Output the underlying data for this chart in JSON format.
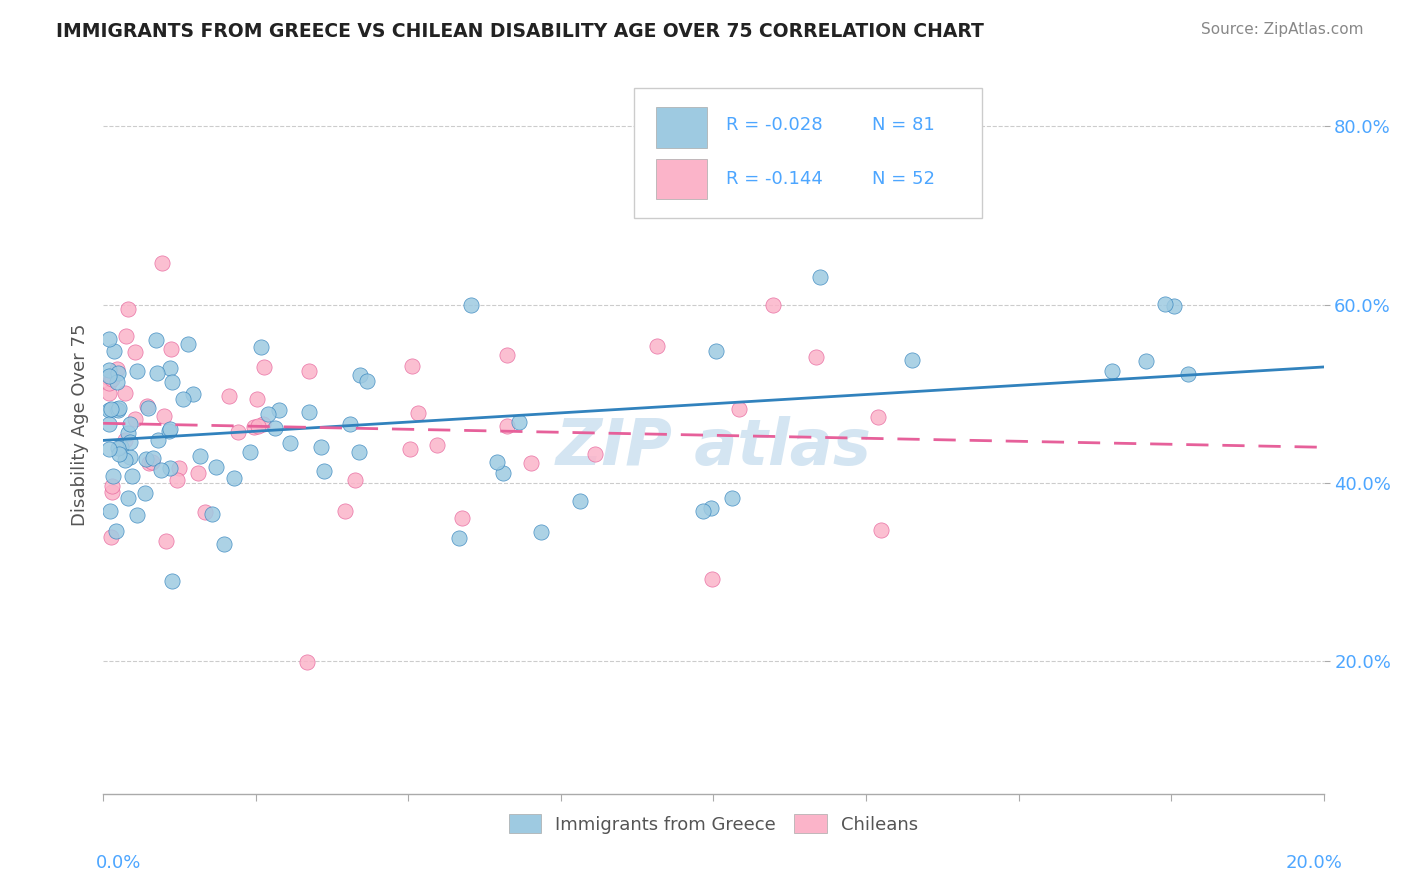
{
  "title": "IMMIGRANTS FROM GREECE VS CHILEAN DISABILITY AGE OVER 75 CORRELATION CHART",
  "source": "Source: ZipAtlas.com",
  "ylabel": "Disability Age Over 75",
  "x_label_bottom_left": "0.0%",
  "x_label_bottom_right": "20.0%",
  "xmin": 0.0,
  "xmax": 0.2,
  "ymin": 0.05,
  "ymax": 0.88,
  "y_ticks": [
    0.2,
    0.4,
    0.6,
    0.8
  ],
  "y_tick_labels": [
    "20.0%",
    "40.0%",
    "60.0%",
    "80.0%"
  ],
  "legend_R1": "R = -0.028",
  "legend_N1": "N = 81",
  "legend_R2": "R = -0.144",
  "legend_N2": "N = 52",
  "color_blue": "#9ecae1",
  "color_pink": "#fbb4c9",
  "color_blue_line": "#3182bd",
  "color_pink_line": "#e6609a",
  "color_axis_labels": "#4da6ff",
  "watermark_color": "#b8d4ea",
  "legend_label1": "Immigrants from Greece",
  "legend_label2": "Chileans"
}
